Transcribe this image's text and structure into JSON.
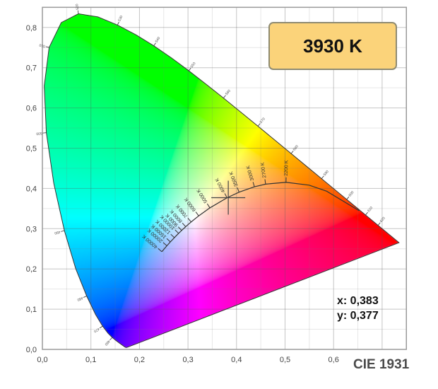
{
  "chart_data": {
    "type": "scatter",
    "title": "CIE 1931",
    "xlabel": "",
    "ylabel": "",
    "xlim": [
      0,
      0.75
    ],
    "ylim": [
      0,
      0.85
    ],
    "grid": true,
    "x_ticks": [
      "0,0",
      "0,1",
      "0,2",
      "0,3",
      "0,4",
      "0,5",
      "0,6"
    ],
    "y_ticks": [
      "0,0",
      "0,1",
      "0,2",
      "0,3",
      "0,4",
      "0,5",
      "0,6",
      "0,7",
      "0,8"
    ],
    "cct_badge": "3930 K",
    "point": {
      "x": 0.383,
      "y": 0.377
    },
    "point_labels": {
      "x": "x: 0,383",
      "y": "y: 0,377"
    },
    "spectral_locus": [
      [
        380,
        0.1741,
        0.005
      ],
      [
        400,
        0.1733,
        0.0048
      ],
      [
        420,
        0.1714,
        0.0051
      ],
      [
        430,
        0.1689,
        0.0069
      ],
      [
        440,
        0.1644,
        0.0109
      ],
      [
        450,
        0.1566,
        0.0177
      ],
      [
        455,
        0.151,
        0.0227
      ],
      [
        460,
        0.144,
        0.0297
      ],
      [
        465,
        0.1355,
        0.0399
      ],
      [
        470,
        0.1241,
        0.0578
      ],
      [
        475,
        0.1096,
        0.0868
      ],
      [
        480,
        0.0913,
        0.1327
      ],
      [
        485,
        0.0687,
        0.2007
      ],
      [
        490,
        0.0454,
        0.295
      ],
      [
        495,
        0.0235,
        0.4127
      ],
      [
        500,
        0.0082,
        0.5384
      ],
      [
        505,
        0.0039,
        0.6548
      ],
      [
        510,
        0.0139,
        0.7502
      ],
      [
        515,
        0.0389,
        0.812
      ],
      [
        520,
        0.0743,
        0.8338
      ],
      [
        525,
        0.1142,
        0.8262
      ],
      [
        530,
        0.1547,
        0.8059
      ],
      [
        535,
        0.1929,
        0.7816
      ],
      [
        540,
        0.2296,
        0.7543
      ],
      [
        545,
        0.2658,
        0.7243
      ],
      [
        550,
        0.3016,
        0.6923
      ],
      [
        555,
        0.3373,
        0.6589
      ],
      [
        560,
        0.3731,
        0.6245
      ],
      [
        565,
        0.4087,
        0.5896
      ],
      [
        570,
        0.4441,
        0.5547
      ],
      [
        575,
        0.4788,
        0.5202
      ],
      [
        580,
        0.5125,
        0.4866
      ],
      [
        585,
        0.5448,
        0.4544
      ],
      [
        590,
        0.5752,
        0.4242
      ],
      [
        595,
        0.6029,
        0.3965
      ],
      [
        600,
        0.627,
        0.3725
      ],
      [
        605,
        0.6482,
        0.3514
      ],
      [
        610,
        0.6658,
        0.334
      ],
      [
        620,
        0.6915,
        0.3083
      ],
      [
        630,
        0.7079,
        0.292
      ],
      [
        640,
        0.719,
        0.2809
      ],
      [
        700,
        0.7347,
        0.2653
      ]
    ],
    "wavelength_labels": [
      460,
      470,
      480,
      490,
      500,
      510,
      520,
      530,
      540,
      550,
      560,
      570,
      580,
      590,
      600,
      610,
      620
    ],
    "planckian_locus": [
      {
        "label": "40000 K",
        "x": 0.2461,
        "y": 0.2428
      },
      {
        "label": "20000 K",
        "x": 0.2565,
        "y": 0.2574
      },
      {
        "label": "15000 K",
        "x": 0.2637,
        "y": 0.2671
      },
      {
        "label": "12000 K",
        "x": 0.2719,
        "y": 0.2776
      },
      {
        "label": "10000 K",
        "x": 0.2806,
        "y": 0.2883
      },
      {
        "label": "9000 K",
        "x": 0.2869,
        "y": 0.2956
      },
      {
        "label": "8000 K",
        "x": 0.2952,
        "y": 0.3048
      },
      {
        "label": "7000 K",
        "x": 0.3064,
        "y": 0.3166
      },
      {
        "label": "6000 K",
        "x": 0.3221,
        "y": 0.3318
      },
      {
        "label": "5000 K",
        "x": 0.3451,
        "y": 0.3516
      },
      {
        "label": "4000 K",
        "x": 0.3805,
        "y": 0.3768
      },
      {
        "label": "3500 K",
        "x": 0.4053,
        "y": 0.3907
      },
      {
        "label": "3000 K",
        "x": 0.4369,
        "y": 0.4041
      },
      {
        "label": "2700 K",
        "x": 0.4599,
        "y": 0.4106
      },
      {
        "label": "2200 K",
        "x": 0.502,
        "y": 0.4152
      },
      {
        "label": "",
        "x": 0.5497,
        "y": 0.4081
      },
      {
        "label": "",
        "x": 0.5857,
        "y": 0.3931
      },
      {
        "label": "",
        "x": 0.6528,
        "y": 0.3444
      }
    ],
    "colors": {
      "badge": "#fbd37a",
      "badge_border": "#8f8b72",
      "title": "#4a4a4a"
    }
  }
}
